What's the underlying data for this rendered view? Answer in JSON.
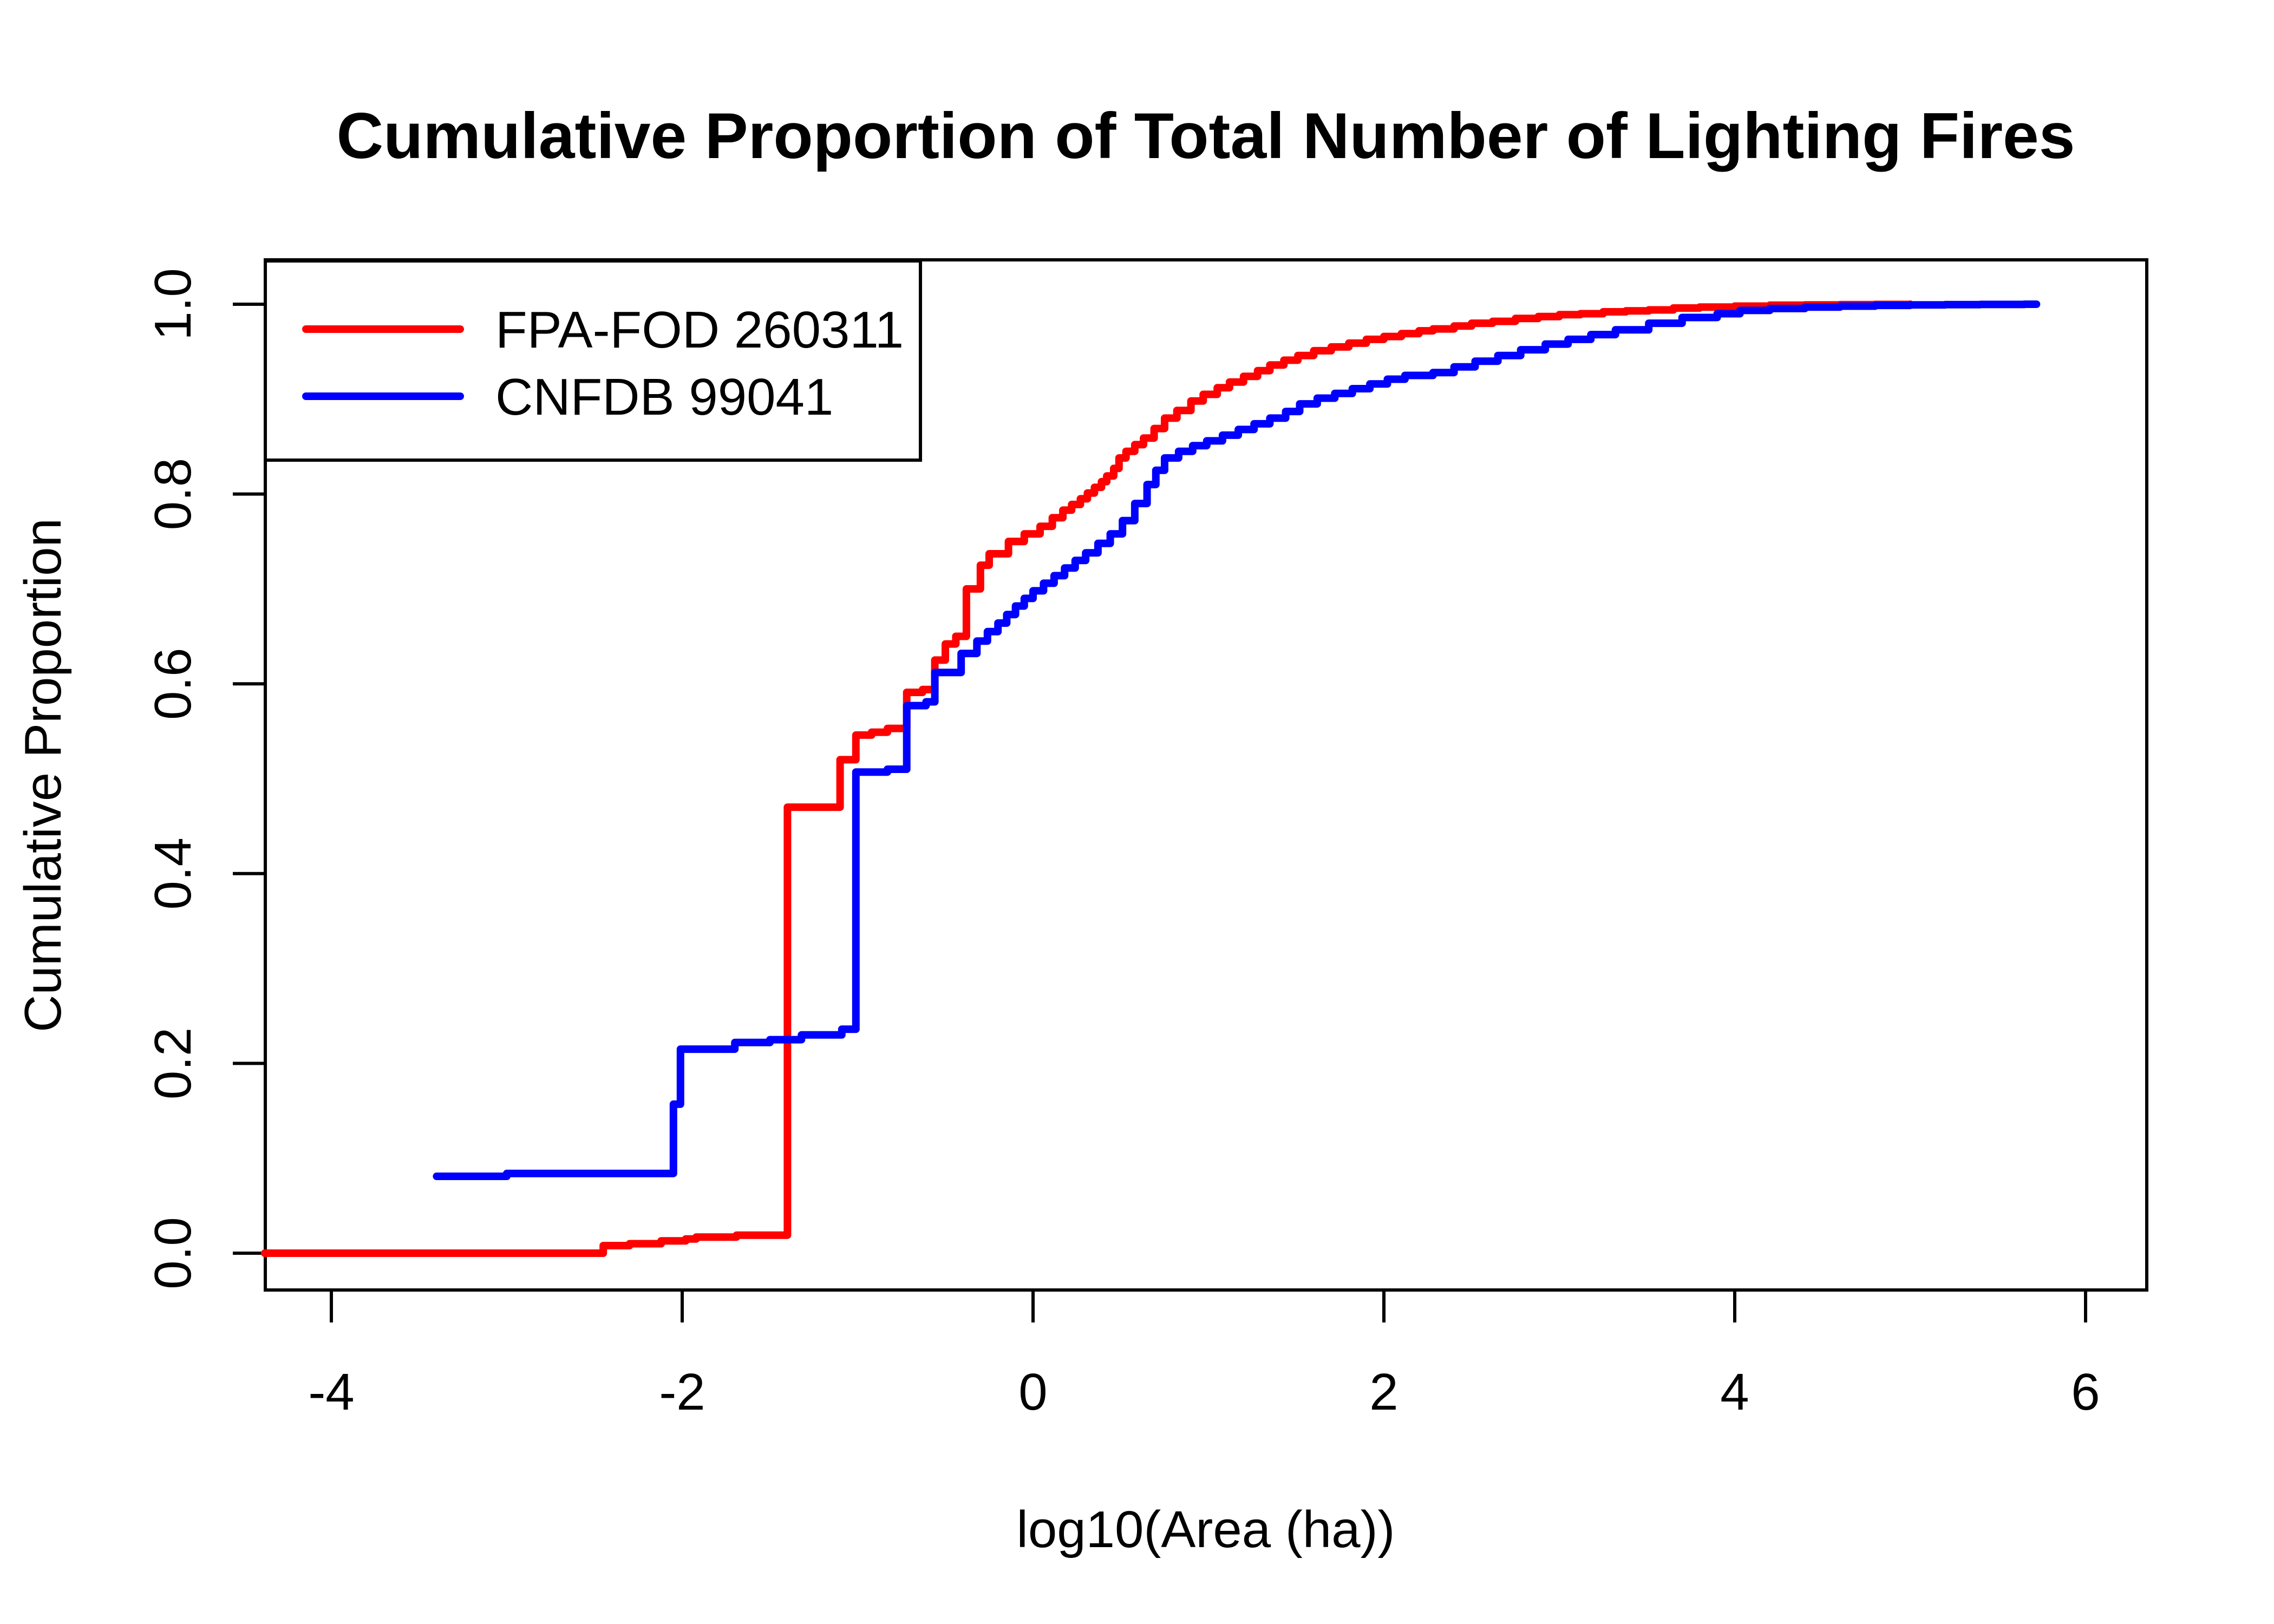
{
  "title": "Cumulative Proportion of Total Number of Lighting Fires",
  "axes": {
    "xlabel": "log10(Area (ha))",
    "ylabel": "Cumulative Proportion",
    "x_tick_labels": [
      "-4",
      "-2",
      "0",
      "2",
      "4",
      "6"
    ],
    "y_tick_labels": [
      "0.0",
      "0.2",
      "0.4",
      "0.6",
      "0.8",
      "1.0"
    ]
  },
  "legend": {
    "items": [
      {
        "label": "FPA-FOD 260311",
        "color": "#ff0000"
      },
      {
        "label": "CNFDB 99041",
        "color": "#0000ff"
      }
    ]
  },
  "colors": {
    "series1": "#ff0000",
    "series2": "#0000ff",
    "frame": "#000000",
    "background": "#ffffff"
  },
  "chart_data": {
    "type": "line",
    "subtype": "step-ecdf",
    "title": "Cumulative Proportion of Total Number of Lighting Fires",
    "xlabel": "log10(Area (ha))",
    "ylabel": "Cumulative Proportion",
    "xlim": [
      -4.38,
      6.35
    ],
    "ylim": [
      -0.038,
      1.046
    ],
    "x_ticks": [
      -4,
      -2,
      0,
      2,
      4,
      6
    ],
    "y_ticks": [
      0.0,
      0.2,
      0.4,
      0.6,
      0.8,
      1.0
    ],
    "grid": false,
    "legend_position": "top-left",
    "series": [
      {
        "name": "FPA-FOD 260311",
        "color": "#ff0000",
        "step": "after",
        "points": [
          [
            -4.38,
            0.0
          ],
          [
            -2.45,
            0.008
          ],
          [
            -2.3,
            0.01
          ],
          [
            -2.12,
            0.013
          ],
          [
            -1.98,
            0.015
          ],
          [
            -1.92,
            0.017
          ],
          [
            -1.69,
            0.019
          ],
          [
            -1.4,
            0.47
          ],
          [
            -1.1,
            0.52
          ],
          [
            -1.01,
            0.546
          ],
          [
            -0.92,
            0.549
          ],
          [
            -0.83,
            0.553
          ],
          [
            -0.72,
            0.591
          ],
          [
            -0.63,
            0.594
          ],
          [
            -0.56,
            0.625
          ],
          [
            -0.5,
            0.642
          ],
          [
            -0.44,
            0.65
          ],
          [
            -0.38,
            0.7
          ],
          [
            -0.3,
            0.725
          ],
          [
            -0.25,
            0.737
          ],
          [
            -0.14,
            0.75
          ],
          [
            -0.05,
            0.758
          ],
          [
            0.04,
            0.766
          ],
          [
            0.11,
            0.775
          ],
          [
            0.17,
            0.783
          ],
          [
            0.22,
            0.789
          ],
          [
            0.27,
            0.795
          ],
          [
            0.31,
            0.801
          ],
          [
            0.35,
            0.807
          ],
          [
            0.39,
            0.813
          ],
          [
            0.42,
            0.819
          ],
          [
            0.46,
            0.827
          ],
          [
            0.49,
            0.838
          ],
          [
            0.53,
            0.845
          ],
          [
            0.58,
            0.852
          ],
          [
            0.63,
            0.859
          ],
          [
            0.69,
            0.869
          ],
          [
            0.75,
            0.88
          ],
          [
            0.82,
            0.888
          ],
          [
            0.9,
            0.898
          ],
          [
            0.97,
            0.905
          ],
          [
            1.05,
            0.912
          ],
          [
            1.12,
            0.918
          ],
          [
            1.2,
            0.924
          ],
          [
            1.28,
            0.93
          ],
          [
            1.35,
            0.936
          ],
          [
            1.43,
            0.941
          ],
          [
            1.51,
            0.946
          ],
          [
            1.6,
            0.951
          ],
          [
            1.7,
            0.955
          ],
          [
            1.8,
            0.959
          ],
          [
            1.9,
            0.963
          ],
          [
            2.0,
            0.966
          ],
          [
            2.1,
            0.969
          ],
          [
            2.2,
            0.972
          ],
          [
            2.28,
            0.974
          ],
          [
            2.4,
            0.977
          ],
          [
            2.5,
            0.98
          ],
          [
            2.62,
            0.982
          ],
          [
            2.75,
            0.985
          ],
          [
            2.88,
            0.987
          ],
          [
            3.0,
            0.989
          ],
          [
            3.12,
            0.99
          ],
          [
            3.25,
            0.992
          ],
          [
            3.38,
            0.993
          ],
          [
            3.51,
            0.994
          ],
          [
            3.65,
            0.996
          ],
          [
            3.8,
            0.997
          ],
          [
            4.0,
            0.998
          ],
          [
            4.2,
            0.999
          ],
          [
            4.4,
            0.9993
          ],
          [
            4.6,
            0.9996
          ],
          [
            4.8,
            0.9998
          ],
          [
            5.0,
            1.0
          ]
        ]
      },
      {
        "name": "CNFDB 99041",
        "color": "#0000ff",
        "step": "after",
        "points": [
          [
            -3.4,
            0.081
          ],
          [
            -3.0,
            0.084
          ],
          [
            -2.05,
            0.157
          ],
          [
            -2.01,
            0.215
          ],
          [
            -1.7,
            0.222
          ],
          [
            -1.5,
            0.225
          ],
          [
            -1.32,
            0.23
          ],
          [
            -1.09,
            0.236
          ],
          [
            -1.01,
            0.507
          ],
          [
            -0.83,
            0.51
          ],
          [
            -0.72,
            0.577
          ],
          [
            -0.61,
            0.581
          ],
          [
            -0.56,
            0.612
          ],
          [
            -0.41,
            0.632
          ],
          [
            -0.32,
            0.645
          ],
          [
            -0.26,
            0.655
          ],
          [
            -0.2,
            0.664
          ],
          [
            -0.15,
            0.673
          ],
          [
            -0.1,
            0.682
          ],
          [
            -0.05,
            0.69
          ],
          [
            0.0,
            0.698
          ],
          [
            0.06,
            0.706
          ],
          [
            0.12,
            0.714
          ],
          [
            0.18,
            0.722
          ],
          [
            0.24,
            0.73
          ],
          [
            0.3,
            0.738
          ],
          [
            0.37,
            0.748
          ],
          [
            0.44,
            0.758
          ],
          [
            0.51,
            0.772
          ],
          [
            0.58,
            0.79
          ],
          [
            0.65,
            0.81
          ],
          [
            0.7,
            0.825
          ],
          [
            0.75,
            0.838
          ],
          [
            0.83,
            0.845
          ],
          [
            0.91,
            0.851
          ],
          [
            0.99,
            0.856
          ],
          [
            1.08,
            0.862
          ],
          [
            1.17,
            0.868
          ],
          [
            1.26,
            0.874
          ],
          [
            1.35,
            0.88
          ],
          [
            1.44,
            0.887
          ],
          [
            1.52,
            0.895
          ],
          [
            1.62,
            0.901
          ],
          [
            1.72,
            0.906
          ],
          [
            1.82,
            0.911
          ],
          [
            1.92,
            0.916
          ],
          [
            2.02,
            0.921
          ],
          [
            2.12,
            0.925
          ],
          [
            2.28,
            0.928
          ],
          [
            2.4,
            0.934
          ],
          [
            2.52,
            0.94
          ],
          [
            2.65,
            0.946
          ],
          [
            2.78,
            0.952
          ],
          [
            2.92,
            0.958
          ],
          [
            3.05,
            0.963
          ],
          [
            3.18,
            0.968
          ],
          [
            3.32,
            0.973
          ],
          [
            3.51,
            0.98
          ],
          [
            3.7,
            0.986
          ],
          [
            3.9,
            0.99
          ],
          [
            4.03,
            0.9935
          ],
          [
            4.2,
            0.9955
          ],
          [
            4.4,
            0.997
          ],
          [
            4.6,
            0.998
          ],
          [
            4.8,
            0.9988
          ],
          [
            5.0,
            0.9993
          ],
          [
            5.2,
            0.9996
          ],
          [
            5.4,
            0.9998
          ],
          [
            5.65,
            1.0
          ],
          [
            5.72,
            1.0
          ]
        ]
      }
    ]
  }
}
